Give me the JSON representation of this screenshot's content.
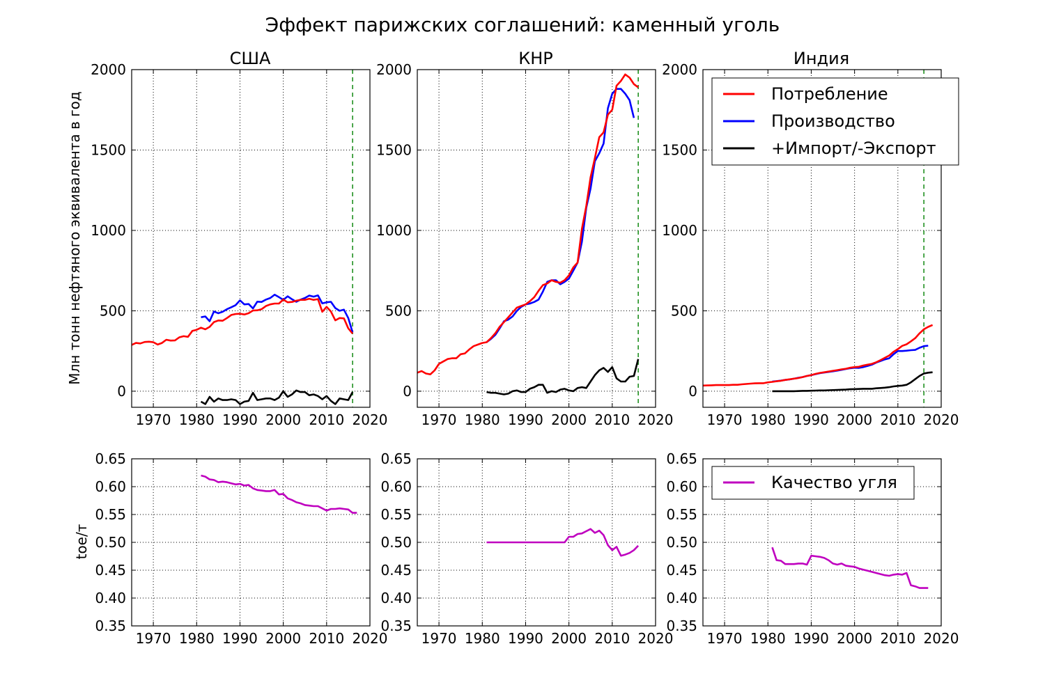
{
  "chart_data": {
    "type": "line",
    "title": "Эффект парижских соглашений: каменный уголь",
    "ylabel_top": "Млн тонн нефтяного эквивалента в год",
    "ylabel_bottom": "toe/т",
    "top": {
      "ylim": [
        -100,
        2000
      ],
      "yticks": [
        0,
        500,
        1000,
        1500,
        2000
      ],
      "xlim": [
        1965,
        2020
      ],
      "xticks": [
        1970,
        1980,
        1990,
        2000,
        2010,
        2020
      ],
      "grid": true,
      "marker_year": 2016,
      "marker_color": "#008000"
    },
    "bottom": {
      "ylim": [
        0.35,
        0.65
      ],
      "yticks": [
        "0.35",
        "0.40",
        "0.45",
        "0.50",
        "0.55",
        "0.60",
        "0.65"
      ],
      "xlim": [
        1965,
        2020
      ],
      "xticks": [
        1970,
        1980,
        1990,
        2000,
        2010,
        2020
      ],
      "grid": true
    },
    "legend_top": {
      "placement": "top-right of India panel",
      "items": [
        {
          "name": "Потребление",
          "color": "#ff0000"
        },
        {
          "name": "Производство",
          "color": "#0000ff"
        },
        {
          "name": "+Импорт/-Экспорт",
          "color": "#000000"
        }
      ]
    },
    "legend_bottom": {
      "placement": "top of India panel",
      "items": [
        {
          "name": "Качество угля",
          "color": "#bf00bf"
        }
      ]
    },
    "panels": [
      {
        "title": "США",
        "consumption": {
          "start": 1965,
          "values": [
            288,
            300,
            297,
            306,
            308,
            305,
            290,
            300,
            320,
            315,
            316,
            335,
            342,
            338,
            375,
            382,
            395,
            385,
            400,
            430,
            440,
            438,
            455,
            474,
            480,
            482,
            477,
            485,
            502,
            503,
            510,
            530,
            540,
            545,
            545,
            570,
            553,
            555,
            563,
            568,
            568,
            575,
            568,
            573,
            494,
            525,
            496,
            441,
            455,
            453,
            391,
            358
          ]
        },
        "production": {
          "start": 1981,
          "values": [
            460,
            465,
            435,
            496,
            485,
            494,
            510,
            522,
            535,
            565,
            540,
            542,
            515,
            557,
            555,
            570,
            580,
            600,
            585,
            568,
            590,
            572,
            556,
            570,
            580,
            595,
            588,
            596,
            546,
            553,
            556,
            517,
            500,
            507,
            455,
            366
          ]
        },
        "net": {
          "start": 1981,
          "values": [
            -65,
            -80,
            -35,
            -65,
            -45,
            -55,
            -55,
            -50,
            -55,
            -80,
            -65,
            -60,
            -10,
            -55,
            -50,
            -45,
            -45,
            -55,
            -40,
            0,
            -35,
            -20,
            5,
            -5,
            -5,
            -25,
            -20,
            -30,
            -50,
            -30,
            -60,
            -80,
            -45,
            -50,
            -55,
            -5
          ]
        }
      },
      {
        "title": "КНР",
        "consumption": {
          "start": 1965,
          "values": [
            115,
            125,
            110,
            105,
            130,
            170,
            185,
            200,
            205,
            205,
            230,
            235,
            260,
            280,
            290,
            300,
            305,
            330,
            360,
            400,
            430,
            460,
            490,
            520,
            530,
            540,
            560,
            585,
            625,
            660,
            670,
            690,
            680,
            675,
            690,
            720,
            770,
            800,
            1010,
            1150,
            1330,
            1450,
            1580,
            1610,
            1720,
            1750,
            1900,
            1930,
            1970,
            1950,
            1910,
            1890
          ]
        },
        "production": {
          "start": 1981,
          "values": [
            305,
            325,
            350,
            390,
            435,
            445,
            465,
            500,
            525,
            540,
            545,
            555,
            570,
            620,
            680,
            690,
            690,
            665,
            680,
            700,
            750,
            800,
            930,
            1140,
            1260,
            1430,
            1480,
            1540,
            1760,
            1850,
            1880,
            1880,
            1850,
            1810,
            1700
          ]
        },
        "net": {
          "start": 1981,
          "values": [
            -5,
            -10,
            -10,
            -15,
            -20,
            -15,
            0,
            5,
            -5,
            -5,
            15,
            25,
            40,
            40,
            -10,
            0,
            -5,
            10,
            15,
            5,
            0,
            20,
            25,
            20,
            60,
            100,
            130,
            145,
            120,
            150,
            80,
            60,
            60,
            90,
            95,
            200
          ]
        }
      },
      {
        "title": "Индия",
        "consumption": {
          "start": 1965,
          "values": [
            35,
            36,
            37,
            38,
            38,
            38,
            38,
            40,
            40,
            43,
            45,
            47,
            49,
            50,
            50,
            55,
            58,
            62,
            65,
            70,
            74,
            78,
            82,
            88,
            95,
            100,
            108,
            114,
            118,
            122,
            127,
            131,
            136,
            140,
            146,
            150,
            152,
            160,
            165,
            170,
            180,
            193,
            208,
            222,
            245,
            262,
            282,
            292,
            310,
            330,
            360,
            385,
            400,
            412
          ]
        },
        "production": {
          "start": 1981,
          "values": [
            60,
            63,
            66,
            70,
            73,
            78,
            83,
            88,
            95,
            100,
            106,
            112,
            116,
            120,
            124,
            128,
            133,
            138,
            143,
            146,
            145,
            150,
            157,
            165,
            178,
            188,
            198,
            205,
            230,
            250,
            250,
            252,
            255,
            257,
            270,
            280,
            283
          ]
        },
        "net": {
          "start": 1981,
          "values": [
            0,
            0,
            0,
            0,
            0,
            0,
            1,
            2,
            2,
            3,
            4,
            5,
            5,
            6,
            7,
            8,
            9,
            10,
            12,
            13,
            14,
            15,
            15,
            15,
            18,
            20,
            22,
            25,
            30,
            33,
            35,
            40,
            55,
            75,
            95,
            110,
            115,
            118
          ]
        }
      }
    ],
    "quality": [
      {
        "start": 1981,
        "values": [
          0.62,
          0.618,
          0.613,
          0.612,
          0.608,
          0.609,
          0.608,
          0.606,
          0.604,
          0.605,
          0.602,
          0.603,
          0.597,
          0.594,
          0.593,
          0.592,
          0.592,
          0.594,
          0.586,
          0.587,
          0.579,
          0.576,
          0.572,
          0.57,
          0.567,
          0.566,
          0.565,
          0.565,
          0.561,
          0.557,
          0.56,
          0.56,
          0.561,
          0.56,
          0.559,
          0.553,
          0.553
        ]
      },
      {
        "start": 1981,
        "values": [
          0.5,
          0.5,
          0.5,
          0.5,
          0.5,
          0.5,
          0.5,
          0.5,
          0.5,
          0.5,
          0.5,
          0.5,
          0.5,
          0.5,
          0.5,
          0.5,
          0.5,
          0.5,
          0.5,
          0.51,
          0.51,
          0.515,
          0.516,
          0.52,
          0.524,
          0.517,
          0.521,
          0.513,
          0.495,
          0.486,
          0.492,
          0.476,
          0.478,
          0.481,
          0.486,
          0.494
        ]
      },
      {
        "start": 1981,
        "values": [
          0.491,
          0.468,
          0.467,
          0.461,
          0.461,
          0.461,
          0.462,
          0.462,
          0.46,
          0.476,
          0.475,
          0.474,
          0.472,
          0.468,
          0.462,
          0.46,
          0.462,
          0.458,
          0.457,
          0.456,
          0.453,
          0.451,
          0.449,
          0.447,
          0.445,
          0.443,
          0.441,
          0.44,
          0.442,
          0.443,
          0.442,
          0.445,
          0.423,
          0.421,
          0.418,
          0.418,
          0.418
        ]
      }
    ]
  }
}
